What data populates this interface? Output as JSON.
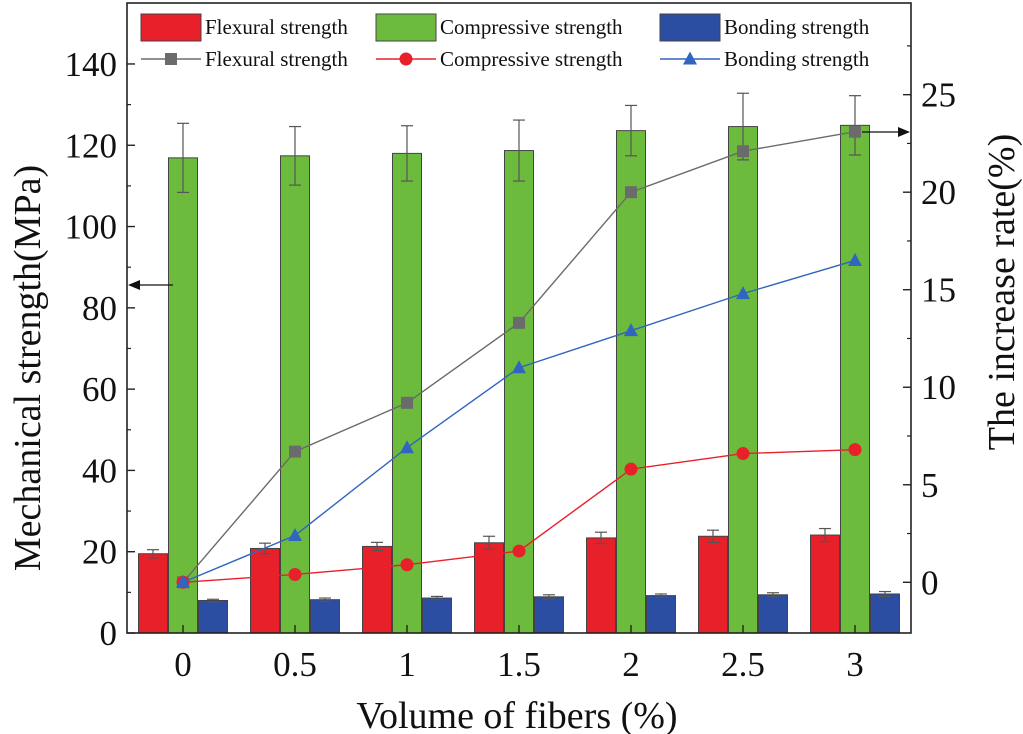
{
  "chart_data": {
    "type": "bar",
    "categories": [
      "0",
      "0.5",
      "1",
      "1.5",
      "2",
      "2.5",
      "3"
    ],
    "xlabel": "Volume of fibers (%)",
    "ylabel": "Mechanical strength(MPa)",
    "y2label": "The increase rate(%)",
    "ylim": [
      0,
      155
    ],
    "y2lim": [
      -2.6,
      29.7
    ],
    "yticks": [
      0,
      20,
      40,
      60,
      80,
      100,
      120,
      140
    ],
    "y2ticks": [
      0,
      5,
      10,
      15,
      20,
      25
    ],
    "bar_series": [
      {
        "name": "Flexural strength",
        "color": "#e8202a",
        "values": [
          19.5,
          20.8,
          21.3,
          22.2,
          23.4,
          23.8,
          24.1
        ],
        "errors": [
          1.0,
          1.3,
          1.0,
          1.6,
          1.4,
          1.5,
          1.6
        ]
      },
      {
        "name": "Compressive strength",
        "color": "#6cbb3c",
        "values": [
          116.9,
          117.4,
          118.0,
          118.7,
          123.6,
          124.6,
          124.9
        ],
        "errors": [
          8.5,
          7.2,
          6.8,
          7.5,
          6.2,
          8.2,
          7.3
        ]
      },
      {
        "name": "Bonding strength",
        "color": "#2b4da2",
        "values": [
          8.0,
          8.2,
          8.6,
          8.9,
          9.2,
          9.4,
          9.6
        ],
        "errors": [
          0.3,
          0.4,
          0.4,
          0.5,
          0.4,
          0.5,
          0.6
        ]
      }
    ],
    "line_series": [
      {
        "name": "Flexural strength",
        "color": "#6b6b6b",
        "marker": "square",
        "values": [
          0,
          6.7,
          9.2,
          13.3,
          20.0,
          22.1,
          23.1
        ]
      },
      {
        "name": "Compressive strength",
        "color": "#e8202a",
        "marker": "circle",
        "values": [
          0,
          0.4,
          0.9,
          1.6,
          5.8,
          6.6,
          6.8
        ]
      },
      {
        "name": "Bonding strength",
        "color": "#3065c0",
        "marker": "triangle",
        "values": [
          0,
          2.4,
          6.9,
          11.0,
          12.9,
          14.8,
          16.5
        ]
      }
    ],
    "annotations": {
      "left_arrow": "points to left axis (Mechanical strength)",
      "right_arrow": "points to right axis (The increase rate)"
    },
    "legend_position": "top",
    "grid": false
  }
}
